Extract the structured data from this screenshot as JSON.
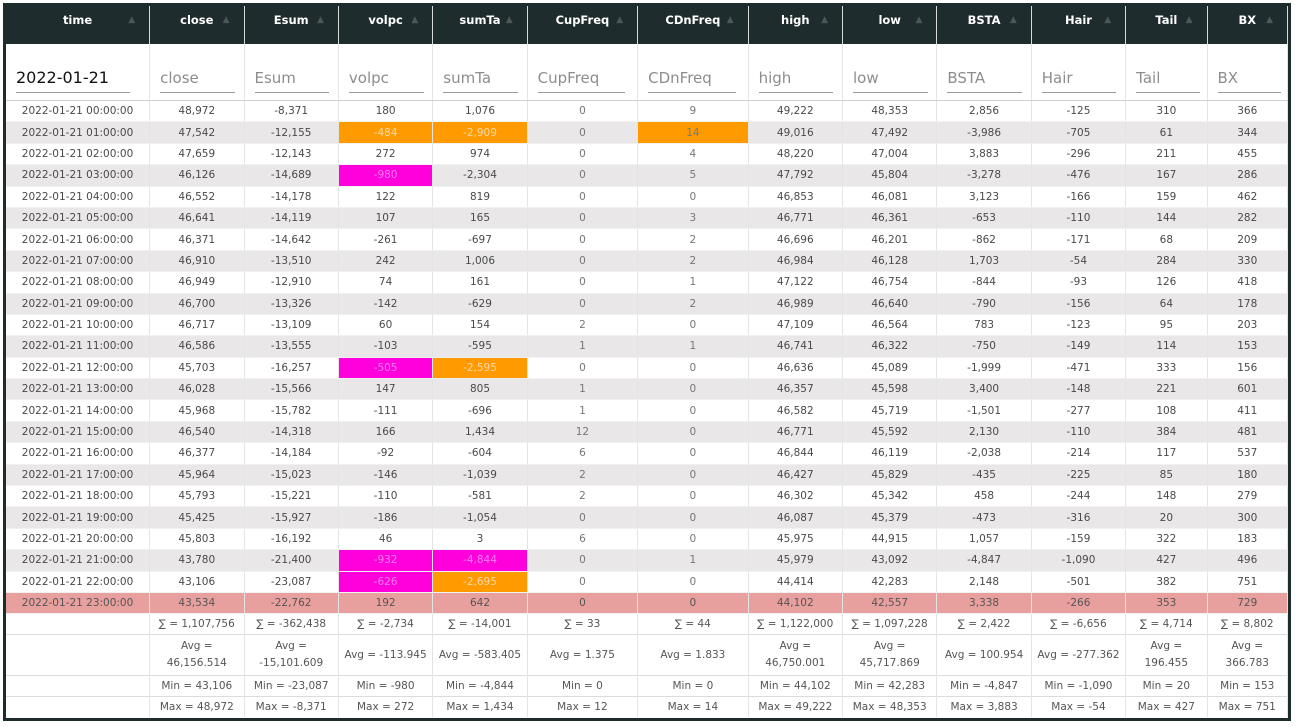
{
  "columns": [
    "time",
    "close",
    "Esum",
    "volpc",
    "sumTa",
    "CupFreq",
    "CDnFreq",
    "high",
    "low",
    "BSTA",
    "Hair",
    "Tail",
    "BX"
  ],
  "filter_time_value": "2022-01-21",
  "placeholders": [
    "",
    "close",
    "Esum",
    "volpc",
    "sumTa",
    "CupFreq",
    "CDnFreq",
    "high",
    "low",
    "BSTA",
    "Hair",
    "Tail",
    "BX"
  ],
  "highlight_colors": {
    "orange": "#ff9a00",
    "magenta": "#ff00dd",
    "last_row": "#e8a09e",
    "header": "#1f2c2d"
  },
  "rows": [
    [
      "2022-01-21 00:00:00",
      "48,972",
      "-8,371",
      "180",
      "1,076",
      "0",
      "9",
      "49,222",
      "48,353",
      "2,856",
      "-125",
      "310",
      "366"
    ],
    [
      "2022-01-21 01:00:00",
      "47,542",
      "-12,155",
      "-484",
      "-2,909",
      "0",
      "14",
      "49,016",
      "47,492",
      "-3,986",
      "-705",
      "61",
      "344"
    ],
    [
      "2022-01-21 02:00:00",
      "47,659",
      "-12,143",
      "272",
      "974",
      "0",
      "4",
      "48,220",
      "47,004",
      "3,883",
      "-296",
      "211",
      "455"
    ],
    [
      "2022-01-21 03:00:00",
      "46,126",
      "-14,689",
      "-980",
      "-2,304",
      "0",
      "5",
      "47,792",
      "45,804",
      "-3,278",
      "-476",
      "167",
      "286"
    ],
    [
      "2022-01-21 04:00:00",
      "46,552",
      "-14,178",
      "122",
      "819",
      "0",
      "0",
      "46,853",
      "46,081",
      "3,123",
      "-166",
      "159",
      "462"
    ],
    [
      "2022-01-21 05:00:00",
      "46,641",
      "-14,119",
      "107",
      "165",
      "0",
      "3",
      "46,771",
      "46,361",
      "-653",
      "-110",
      "144",
      "282"
    ],
    [
      "2022-01-21 06:00:00",
      "46,371",
      "-14,642",
      "-261",
      "-697",
      "0",
      "2",
      "46,696",
      "46,201",
      "-862",
      "-171",
      "68",
      "209"
    ],
    [
      "2022-01-21 07:00:00",
      "46,910",
      "-13,510",
      "242",
      "1,006",
      "0",
      "2",
      "46,984",
      "46,128",
      "1,703",
      "-54",
      "284",
      "330"
    ],
    [
      "2022-01-21 08:00:00",
      "46,949",
      "-12,910",
      "74",
      "161",
      "0",
      "1",
      "47,122",
      "46,754",
      "-844",
      "-93",
      "126",
      "418"
    ],
    [
      "2022-01-21 09:00:00",
      "46,700",
      "-13,326",
      "-142",
      "-629",
      "0",
      "2",
      "46,989",
      "46,640",
      "-790",
      "-156",
      "64",
      "178"
    ],
    [
      "2022-01-21 10:00:00",
      "46,717",
      "-13,109",
      "60",
      "154",
      "2",
      "0",
      "47,109",
      "46,564",
      "783",
      "-123",
      "95",
      "203"
    ],
    [
      "2022-01-21 11:00:00",
      "46,586",
      "-13,555",
      "-103",
      "-595",
      "1",
      "1",
      "46,741",
      "46,322",
      "-750",
      "-149",
      "114",
      "153"
    ],
    [
      "2022-01-21 12:00:00",
      "45,703",
      "-16,257",
      "-505",
      "-2,595",
      "0",
      "0",
      "46,636",
      "45,089",
      "-1,999",
      "-471",
      "333",
      "156"
    ],
    [
      "2022-01-21 13:00:00",
      "46,028",
      "-15,566",
      "147",
      "805",
      "1",
      "0",
      "46,357",
      "45,598",
      "3,400",
      "-148",
      "221",
      "601"
    ],
    [
      "2022-01-21 14:00:00",
      "45,968",
      "-15,782",
      "-111",
      "-696",
      "1",
      "0",
      "46,582",
      "45,719",
      "-1,501",
      "-277",
      "108",
      "411"
    ],
    [
      "2022-01-21 15:00:00",
      "46,540",
      "-14,318",
      "166",
      "1,434",
      "12",
      "0",
      "46,771",
      "45,592",
      "2,130",
      "-110",
      "384",
      "481"
    ],
    [
      "2022-01-21 16:00:00",
      "46,377",
      "-14,184",
      "-92",
      "-604",
      "6",
      "0",
      "46,844",
      "46,119",
      "-2,038",
      "-214",
      "117",
      "537"
    ],
    [
      "2022-01-21 17:00:00",
      "45,964",
      "-15,023",
      "-146",
      "-1,039",
      "2",
      "0",
      "46,427",
      "45,829",
      "-435",
      "-225",
      "85",
      "180"
    ],
    [
      "2022-01-21 18:00:00",
      "45,793",
      "-15,221",
      "-110",
      "-581",
      "2",
      "0",
      "46,302",
      "45,342",
      "458",
      "-244",
      "148",
      "279"
    ],
    [
      "2022-01-21 19:00:00",
      "45,425",
      "-15,927",
      "-186",
      "-1,054",
      "0",
      "0",
      "46,087",
      "45,379",
      "-473",
      "-316",
      "20",
      "300"
    ],
    [
      "2022-01-21 20:00:00",
      "45,803",
      "-16,192",
      "46",
      "3",
      "6",
      "0",
      "45,975",
      "44,915",
      "1,057",
      "-159",
      "322",
      "183"
    ],
    [
      "2022-01-21 21:00:00",
      "43,780",
      "-21,400",
      "-932",
      "-4,844",
      "0",
      "1",
      "45,979",
      "43,092",
      "-4,847",
      "-1,090",
      "427",
      "496"
    ],
    [
      "2022-01-21 22:00:00",
      "43,106",
      "-23,087",
      "-626",
      "-2,695",
      "0",
      "0",
      "44,414",
      "42,283",
      "2,148",
      "-501",
      "382",
      "751"
    ],
    [
      "2022-01-21 23:00:00",
      "43,534",
      "-22,762",
      "192",
      "642",
      "0",
      "0",
      "44,102",
      "42,557",
      "3,338",
      "-266",
      "353",
      "729"
    ]
  ],
  "highlights": [
    {
      "row": 1,
      "col": 3,
      "color": "orange"
    },
    {
      "row": 1,
      "col": 4,
      "color": "orange"
    },
    {
      "row": 1,
      "col": 6,
      "color": "orange"
    },
    {
      "row": 3,
      "col": 3,
      "color": "magenta"
    },
    {
      "row": 12,
      "col": 3,
      "color": "magenta"
    },
    {
      "row": 12,
      "col": 4,
      "color": "orange"
    },
    {
      "row": 21,
      "col": 3,
      "color": "magenta"
    },
    {
      "row": 21,
      "col": 4,
      "color": "magenta"
    },
    {
      "row": 22,
      "col": 3,
      "color": "magenta"
    },
    {
      "row": 22,
      "col": 4,
      "color": "orange"
    }
  ],
  "footer": {
    "sum": [
      "",
      "∑ = 1,107,756",
      "∑ = -362,438",
      "∑ = -2,734",
      "∑ = -14,001",
      "∑ = 33",
      "∑ = 44",
      "∑ = 1,122,000",
      "∑ = 1,097,228",
      "∑ = 2,422",
      "∑ = -6,656",
      "∑ = 4,714",
      "∑ = 8,802"
    ],
    "avg": [
      "",
      "Avg = 46,156.514",
      "Avg = -15,101.609",
      "Avg = -113.945",
      "Avg = -583.405",
      "Avg = 1.375",
      "Avg = 1.833",
      "Avg = 46,750.001",
      "Avg = 45,717.869",
      "Avg = 100.954",
      "Avg = -277.362",
      "Avg = 196.455",
      "Avg = 366.783"
    ],
    "min": [
      "",
      "Min = 43,106",
      "Min = -23,087",
      "Min = -980",
      "Min = -4,844",
      "Min = 0",
      "Min = 0",
      "Min = 44,102",
      "Min = 42,283",
      "Min = -4,847",
      "Min = -1,090",
      "Min = 20",
      "Min = 153"
    ],
    "max": [
      "",
      "Max = 48,972",
      "Max = -8,371",
      "Max = 272",
      "Max = 1,434",
      "Max = 12",
      "Max = 14",
      "Max = 49,222",
      "Max = 48,353",
      "Max = 3,883",
      "Max = -54",
      "Max = 427",
      "Max = 751"
    ]
  }
}
